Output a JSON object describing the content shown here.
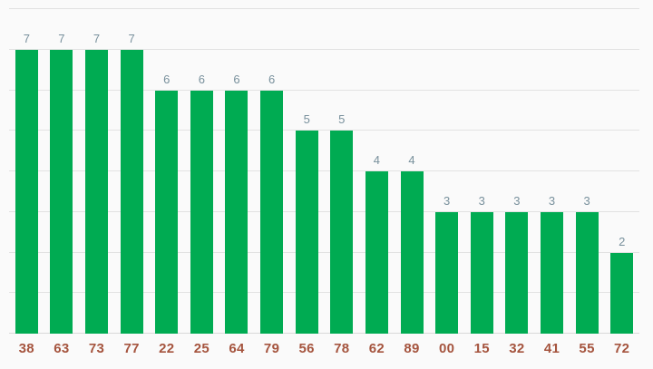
{
  "chart_data": {
    "type": "bar",
    "title": "",
    "xlabel": "",
    "ylabel": "",
    "categories": [
      "38",
      "63",
      "73",
      "77",
      "22",
      "25",
      "64",
      "79",
      "56",
      "78",
      "62",
      "89",
      "00",
      "15",
      "32",
      "41",
      "55",
      "72"
    ],
    "values": [
      7,
      7,
      7,
      7,
      6,
      6,
      6,
      6,
      5,
      5,
      4,
      4,
      3,
      3,
      3,
      3,
      3,
      2
    ],
    "ylim": [
      0,
      8
    ],
    "grid": true,
    "gridline_step": 1,
    "y_axis_labels_visible": false,
    "legend_position": "none",
    "colors": {
      "background": "#fafafa",
      "bar": "#00ab52",
      "value_label": "#78909c",
      "category_label": "#a5543e",
      "gridline": "#e2e2e2",
      "baseline": "#d9d9d9"
    }
  }
}
